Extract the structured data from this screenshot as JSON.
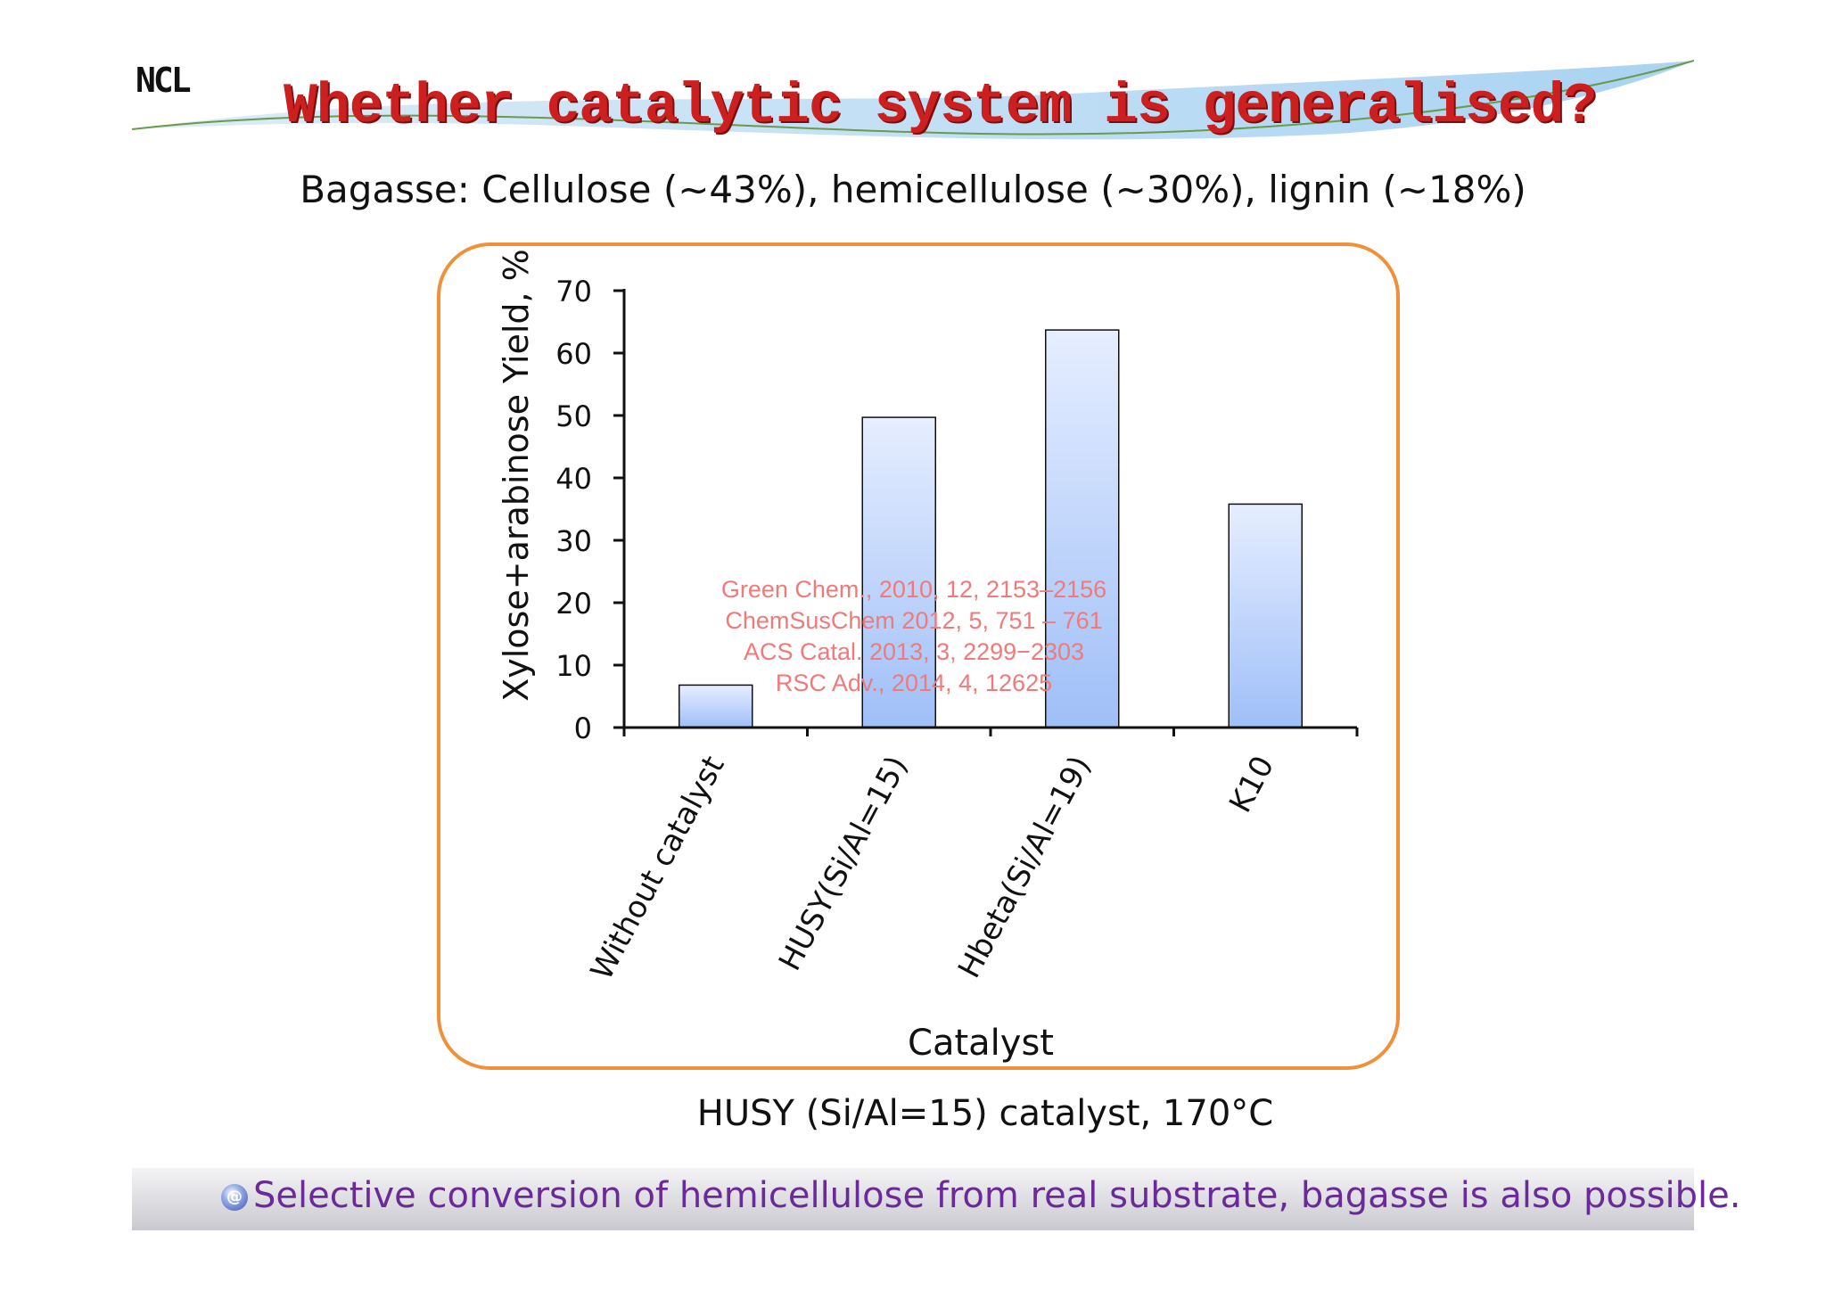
{
  "slide": {
    "logo": "NCL",
    "title": "Whether catalytic system is generalised?",
    "subtitle": "Bagasse: Cellulose (~43%), hemicellulose (~30%), lignin (~18%)",
    "footnote": "HUSY (Si/Al=15) catalyst, 170°C",
    "conclusion": "Selective conversion of hemicellulose from real substrate, bagasse is also possible.",
    "conclusion_icon": "bullet-globe-icon",
    "colors": {
      "title": "#cc1f1f",
      "frame": "#f0913a",
      "conclusion": "#6a2a9a",
      "reference_text": "#f07a7a"
    }
  },
  "chart_data": {
    "type": "bar",
    "categories": [
      "Without catalyst",
      "HUSY(Si/Al=15)",
      "Hbeta(Si/Al=19)",
      "K10"
    ],
    "values": [
      6.8,
      49.7,
      63.7,
      35.8
    ],
    "xlabel": "Catalyst",
    "ylabel": "Xylose+arabinose Yield, %",
    "ylim": [
      0,
      70
    ],
    "yticks": [
      "0",
      "10",
      "20",
      "30",
      "40",
      "50",
      "60",
      "70"
    ],
    "grid": false,
    "bar_fill": [
      "#e6eeff",
      "#9fbff8"
    ],
    "references": [
      "Green Chem., 2010, 12, 2153–2156",
      "ChemSusChem 2012, 5, 751 – 761",
      "ACS Catal. 2013, 3, 2299−2303",
      "RSC Adv., 2014, 4, 12625"
    ]
  }
}
